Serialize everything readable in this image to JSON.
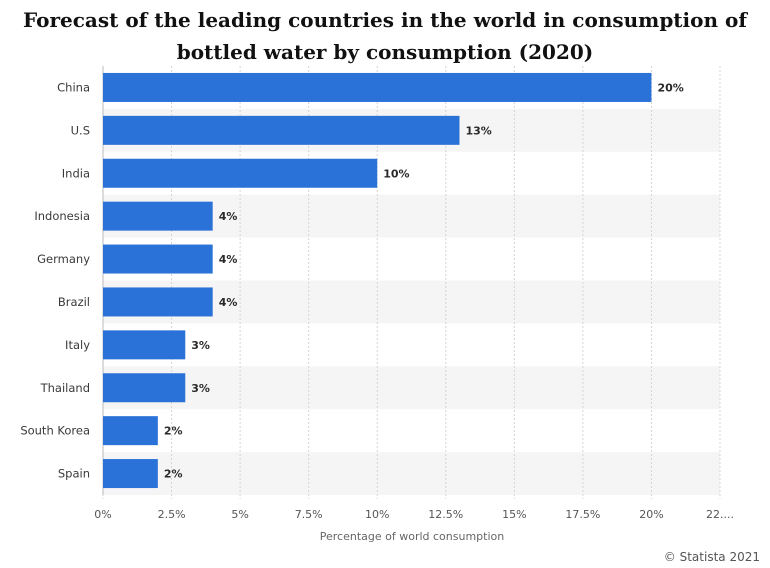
{
  "title_line1": "Forecast of the leading countries in the world in consumption of",
  "title_line2": "bottled water by consumption (2020)",
  "credit": "© Statista 2021",
  "bar_color": "#2b72d8",
  "stripe_color": "#f5f5f5",
  "chart_data": {
    "type": "bar",
    "orientation": "horizontal",
    "categories": [
      "China",
      "U.S",
      "India",
      "Indonesia",
      "Germany",
      "Brazil",
      "Italy",
      "Thailand",
      "South Korea",
      "Spain"
    ],
    "values": [
      20,
      13,
      10,
      4,
      4,
      4,
      3,
      3,
      2,
      2
    ],
    "value_labels": [
      "20%",
      "13%",
      "10%",
      "4%",
      "4%",
      "4%",
      "3%",
      "3%",
      "2%",
      "2%"
    ],
    "xlabel": "Percentage of world consumption",
    "xticks": [
      "0%",
      "2.5%",
      "5%",
      "7.5%",
      "10%",
      "12.5%",
      "15%",
      "17.5%",
      "20%",
      "22...."
    ],
    "xlim": [
      0,
      22.5
    ],
    "grid": true
  }
}
